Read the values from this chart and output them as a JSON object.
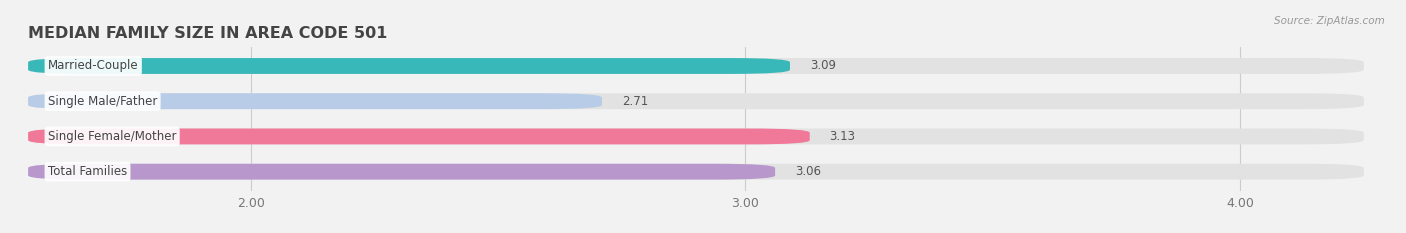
{
  "title": "MEDIAN FAMILY SIZE IN AREA CODE 501",
  "source": "Source: ZipAtlas.com",
  "categories": [
    "Married-Couple",
    "Single Male/Father",
    "Single Female/Mother",
    "Total Families"
  ],
  "values": [
    3.09,
    2.71,
    3.13,
    3.06
  ],
  "bar_colors": [
    "#38b8b8",
    "#b8cce8",
    "#f07898",
    "#b898cc"
  ],
  "background_color": "#f2f2f2",
  "bar_bg_color": "#e2e2e2",
  "xmin": 1.55,
  "xmax": 4.25,
  "xticks": [
    2.0,
    3.0,
    4.0
  ],
  "label_fontsize": 8.5,
  "value_fontsize": 8.5,
  "title_fontsize": 11.5
}
